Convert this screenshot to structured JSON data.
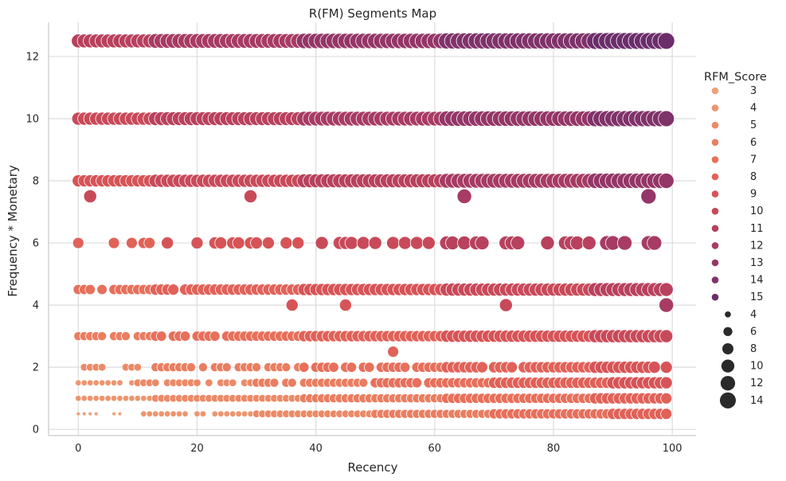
{
  "chart_data": {
    "type": "scatter",
    "title": "R(FM) Segments Map",
    "xlabel": "Recency",
    "ylabel": "Frequency * Monetary",
    "xlim": [
      -5,
      104
    ],
    "ylim": [
      -0.2,
      13.1
    ],
    "xticks": [
      0,
      20,
      40,
      60,
      80,
      100
    ],
    "yticks": [
      0,
      2,
      4,
      6,
      8,
      10,
      12
    ],
    "grid": true,
    "legend_position": "right",
    "legend": {
      "hue_title": "RFM_Score",
      "hue_levels": [
        3,
        4,
        5,
        6,
        7,
        8,
        9,
        10,
        11,
        12,
        13,
        14,
        15
      ],
      "hue_colors": [
        "#eda178",
        "#ec9670",
        "#eb8a67",
        "#e97e61",
        "#e6705c",
        "#e06259",
        "#d65457",
        "#c84a5a",
        "#b8415e",
        "#a73b63",
        "#943667",
        "#80326a",
        "#6c2e6b"
      ],
      "size_levels": [
        4,
        6,
        8,
        10,
        12,
        14
      ]
    },
    "bands": [
      {
        "y": 12.5,
        "rfm": [
          11,
          15
        ],
        "x": [
          0,
          1,
          2,
          3,
          4,
          5,
          6,
          7,
          8,
          9,
          10,
          11,
          12,
          13,
          14,
          15,
          16,
          17,
          18,
          19,
          20,
          21,
          22,
          23,
          24,
          25,
          26,
          27,
          28,
          29,
          30,
          31,
          32,
          33,
          34,
          35,
          36,
          37,
          38,
          39,
          40,
          41,
          42,
          43,
          44,
          45,
          46,
          47,
          48,
          49,
          50,
          51,
          52,
          53,
          54,
          55,
          56,
          57,
          58,
          59,
          60,
          61,
          62,
          63,
          64,
          65,
          66,
          67,
          68,
          69,
          70,
          71,
          72,
          73,
          74,
          75,
          76,
          77,
          78,
          79,
          80,
          81,
          82,
          83,
          84,
          85,
          86,
          87,
          88,
          89,
          90,
          91,
          92,
          93,
          94,
          95,
          96,
          97,
          98,
          99
        ]
      },
      {
        "y": 10,
        "rfm": [
          10,
          14
        ],
        "x": [
          0,
          1,
          2,
          3,
          4,
          5,
          6,
          7,
          8,
          9,
          10,
          11,
          12,
          13,
          14,
          15,
          16,
          17,
          18,
          19,
          20,
          21,
          22,
          23,
          24,
          25,
          26,
          27,
          28,
          29,
          30,
          31,
          32,
          33,
          34,
          35,
          36,
          37,
          38,
          39,
          40,
          41,
          42,
          43,
          44,
          45,
          46,
          47,
          48,
          49,
          50,
          51,
          52,
          53,
          54,
          55,
          56,
          57,
          58,
          59,
          60,
          61,
          62,
          63,
          64,
          65,
          66,
          67,
          68,
          69,
          70,
          71,
          72,
          73,
          74,
          75,
          76,
          77,
          78,
          79,
          80,
          81,
          82,
          83,
          84,
          85,
          86,
          87,
          88,
          89,
          90,
          91,
          92,
          93,
          94,
          95,
          96,
          97,
          98,
          99
        ]
      },
      {
        "y": 8,
        "rfm": [
          9,
          13
        ],
        "x": [
          0,
          1,
          2,
          3,
          4,
          5,
          6,
          7,
          8,
          9,
          10,
          11,
          12,
          13,
          14,
          15,
          16,
          17,
          18,
          19,
          20,
          21,
          22,
          23,
          24,
          25,
          26,
          27,
          28,
          29,
          30,
          31,
          32,
          33,
          34,
          35,
          36,
          37,
          38,
          39,
          40,
          41,
          42,
          43,
          44,
          45,
          46,
          47,
          48,
          49,
          50,
          51,
          52,
          53,
          54,
          55,
          56,
          57,
          58,
          59,
          60,
          61,
          62,
          63,
          64,
          65,
          66,
          67,
          68,
          69,
          70,
          71,
          72,
          73,
          74,
          75,
          76,
          77,
          78,
          79,
          80,
          81,
          82,
          83,
          84,
          85,
          86,
          87,
          88,
          89,
          90,
          91,
          92,
          93,
          94,
          95,
          96,
          97,
          98,
          99
        ]
      },
      {
        "y": 6,
        "rfm": [
          8,
          12
        ],
        "x": [
          0,
          6,
          9,
          11,
          12,
          15,
          20,
          23,
          24,
          26,
          27,
          29,
          30,
          32,
          35,
          37,
          41,
          44,
          45,
          46,
          48,
          50,
          53,
          55,
          57,
          59,
          62,
          63,
          65,
          67,
          68,
          72,
          73,
          74,
          79,
          82,
          83,
          84,
          86,
          89,
          90,
          92,
          96,
          97
        ]
      },
      {
        "y": 4.5,
        "rfm": [
          7,
          11
        ],
        "x": [
          0,
          1,
          2,
          4,
          6,
          7,
          8,
          9,
          10,
          11,
          12,
          13,
          14,
          15,
          16,
          18,
          19,
          20,
          21,
          22,
          23,
          24,
          25,
          26,
          27,
          28,
          29,
          30,
          31,
          32,
          33,
          34,
          35,
          36,
          37,
          38,
          39,
          40,
          41,
          42,
          43,
          44,
          45,
          46,
          47,
          48,
          49,
          50,
          51,
          52,
          53,
          54,
          55,
          56,
          57,
          58,
          59,
          60,
          61,
          62,
          63,
          64,
          65,
          66,
          67,
          68,
          69,
          70,
          71,
          72,
          73,
          74,
          75,
          76,
          77,
          78,
          79,
          80,
          81,
          82,
          83,
          84,
          85,
          86,
          87,
          88,
          89,
          90,
          91,
          92,
          93,
          94,
          95,
          96,
          97,
          98,
          99
        ]
      },
      {
        "y": 3,
        "rfm": [
          6,
          10
        ],
        "x": [
          0,
          1,
          2,
          3,
          4,
          6,
          7,
          8,
          10,
          11,
          12,
          13,
          14,
          16,
          17,
          18,
          20,
          21,
          22,
          23,
          25,
          26,
          27,
          28,
          29,
          30,
          31,
          32,
          33,
          34,
          35,
          36,
          37,
          38,
          39,
          40,
          41,
          42,
          43,
          44,
          45,
          46,
          47,
          48,
          49,
          50,
          51,
          52,
          53,
          54,
          55,
          56,
          57,
          58,
          59,
          60,
          61,
          62,
          63,
          64,
          65,
          66,
          67,
          68,
          69,
          70,
          71,
          72,
          73,
          74,
          75,
          76,
          77,
          78,
          79,
          80,
          81,
          82,
          83,
          84,
          85,
          86,
          87,
          88,
          89,
          90,
          91,
          92,
          93,
          94,
          95,
          96,
          97,
          98,
          99
        ]
      },
      {
        "y": 2,
        "rfm": [
          5,
          9
        ],
        "x": [
          1,
          2,
          3,
          4,
          8,
          9,
          10,
          13,
          14,
          15,
          16,
          17,
          18,
          19,
          21,
          23,
          24,
          25,
          27,
          28,
          29,
          30,
          32,
          33,
          34,
          35,
          37,
          38,
          40,
          41,
          42,
          43,
          45,
          46,
          48,
          49,
          51,
          52,
          53,
          54,
          55,
          57,
          58,
          59,
          60,
          61,
          62,
          63,
          64,
          65,
          66,
          67,
          68,
          70,
          71,
          72,
          73,
          75,
          76,
          77,
          78,
          79,
          80,
          81,
          82,
          83,
          84,
          85,
          86,
          87,
          88,
          89,
          90,
          91,
          92,
          93,
          94,
          95,
          96,
          97,
          99
        ]
      },
      {
        "y": 1.5,
        "rfm": [
          4,
          9
        ],
        "x": [
          0,
          1,
          2,
          3,
          4,
          5,
          6,
          7,
          9,
          10,
          11,
          12,
          13,
          15,
          16,
          17,
          18,
          19,
          20,
          22,
          24,
          25,
          26,
          28,
          29,
          30,
          31,
          32,
          33,
          35,
          36,
          38,
          39,
          40,
          41,
          42,
          43,
          44,
          45,
          46,
          47,
          48,
          50,
          51,
          52,
          53,
          54,
          55,
          56,
          57,
          59,
          60,
          61,
          62,
          63,
          64,
          65,
          66,
          67,
          68,
          69,
          70,
          71,
          72,
          73,
          74,
          75,
          76,
          77,
          78,
          79,
          80,
          81,
          82,
          83,
          84,
          85,
          86,
          87,
          88,
          89,
          90,
          91,
          92,
          93,
          94,
          95,
          96,
          97,
          98,
          99
        ]
      },
      {
        "y": 1,
        "rfm": [
          4,
          8
        ],
        "x": [
          0,
          1,
          2,
          3,
          4,
          5,
          6,
          7,
          8,
          9,
          10,
          11,
          12,
          13,
          14,
          15,
          16,
          17,
          18,
          19,
          20,
          21,
          22,
          23,
          24,
          25,
          26,
          27,
          28,
          29,
          30,
          31,
          32,
          33,
          34,
          35,
          36,
          37,
          38,
          39,
          40,
          41,
          42,
          43,
          44,
          45,
          46,
          47,
          48,
          49,
          50,
          51,
          52,
          53,
          54,
          55,
          56,
          57,
          58,
          59,
          60,
          61,
          62,
          63,
          64,
          65,
          66,
          67,
          68,
          69,
          70,
          71,
          72,
          73,
          74,
          75,
          76,
          77,
          78,
          79,
          80,
          81,
          82,
          83,
          84,
          85,
          86,
          87,
          88,
          89,
          90,
          91,
          92,
          93,
          94,
          95,
          96,
          97,
          98,
          99
        ]
      },
      {
        "y": 0.5,
        "rfm": [
          3,
          8
        ],
        "x": [
          0,
          1,
          2,
          3,
          6,
          7,
          11,
          12,
          13,
          14,
          15,
          16,
          17,
          18,
          20,
          21,
          23,
          24,
          25,
          26,
          27,
          28,
          29,
          30,
          31,
          32,
          33,
          34,
          35,
          36,
          37,
          38,
          39,
          40,
          41,
          42,
          43,
          44,
          45,
          46,
          47,
          48,
          49,
          50,
          51,
          52,
          53,
          54,
          55,
          56,
          57,
          58,
          59,
          60,
          61,
          62,
          63,
          64,
          65,
          66,
          67,
          68,
          69,
          70,
          71,
          72,
          73,
          74,
          75,
          76,
          77,
          78,
          79,
          80,
          81,
          82,
          83,
          84,
          85,
          86,
          87,
          88,
          89,
          90,
          91,
          92,
          93,
          94,
          95,
          96,
          97,
          98,
          99
        ]
      }
    ],
    "outliers": [
      {
        "x": 2,
        "y": 7.5,
        "rfm": 10
      },
      {
        "x": 29,
        "y": 7.5,
        "rfm": 10
      },
      {
        "x": 65,
        "y": 7.5,
        "rfm": 12
      },
      {
        "x": 96,
        "y": 7.5,
        "rfm": 13
      },
      {
        "x": 36,
        "y": 4,
        "rfm": 9
      },
      {
        "x": 45,
        "y": 4,
        "rfm": 9
      },
      {
        "x": 72,
        "y": 4,
        "rfm": 10
      },
      {
        "x": 99,
        "y": 4,
        "rfm": 12
      },
      {
        "x": 53,
        "y": 2.5,
        "rfm": 8
      }
    ]
  }
}
